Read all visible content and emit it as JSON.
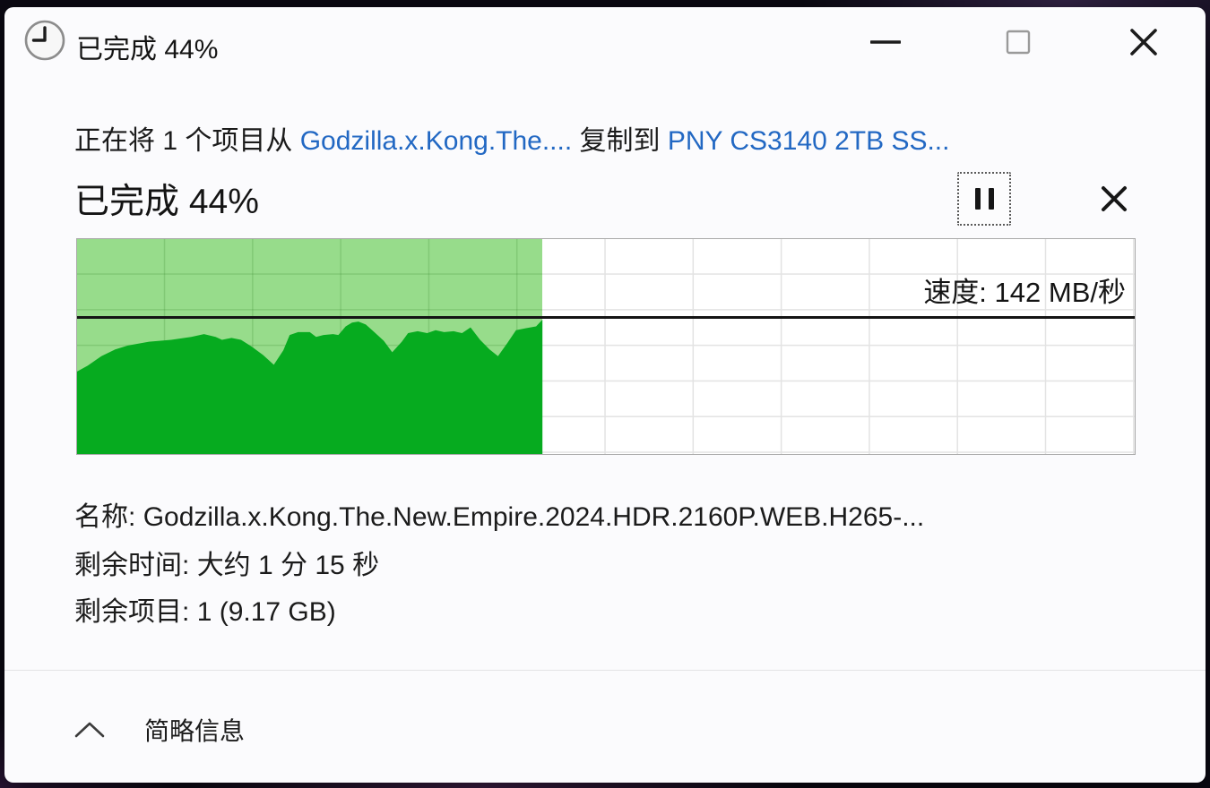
{
  "colors": {
    "link": "#2268c3",
    "green_dark": "#06ab1f",
    "green_light": "#97dc8b",
    "line_black": "#141414"
  },
  "window": {
    "title": "已完成 44%"
  },
  "header": {
    "copy_prefix": "正在将 1 个项目从 ",
    "source": "Godzilla.x.Kong.The....",
    "copy_middle": " 复制到 ",
    "destination": "PNY CS3140 2TB SS...",
    "progress_heading": "已完成 44%"
  },
  "chart_data": {
    "type": "area",
    "current_speed_label": "速度: 142 MB/秒",
    "current_speed_mbps": 142,
    "completed_fraction": 0.44,
    "ylim": [
      0,
      224
    ],
    "grid": true,
    "x_progress": [
      0.0,
      0.01,
      0.023,
      0.036,
      0.048,
      0.068,
      0.089,
      0.108,
      0.12,
      0.131,
      0.137,
      0.146,
      0.155,
      0.165,
      0.176,
      0.186,
      0.195,
      0.201,
      0.209,
      0.22,
      0.226,
      0.233,
      0.242,
      0.247,
      0.254,
      0.26,
      0.266,
      0.273,
      0.281,
      0.29,
      0.298,
      0.307,
      0.313,
      0.322,
      0.331,
      0.339,
      0.347,
      0.356,
      0.364,
      0.372,
      0.381,
      0.39,
      0.398,
      0.407,
      0.415,
      0.424,
      0.434,
      0.44
    ],
    "speed_mb_s": [
      86,
      92,
      102,
      109,
      113,
      117,
      119,
      122,
      125,
      122,
      119,
      121,
      119,
      112,
      103,
      93,
      108,
      124,
      127,
      127,
      122,
      124,
      125,
      124,
      133,
      137,
      138,
      135,
      127,
      118,
      106,
      117,
      126,
      128,
      126,
      129,
      127,
      128,
      126,
      132,
      119,
      109,
      102,
      116,
      129,
      131,
      133,
      140
    ]
  },
  "details": {
    "name_label": "名称:",
    "name_value": "Godzilla.x.Kong.The.New.Empire.2024.HDR.2160P.WEB.H265-...",
    "time_label": "剩余时间:",
    "time_value": "大约 1 分 15 秒",
    "items_label": "剩余项目:",
    "items_value": "1 (9.17 GB)"
  },
  "footer": {
    "toggle_label": "简略信息"
  }
}
